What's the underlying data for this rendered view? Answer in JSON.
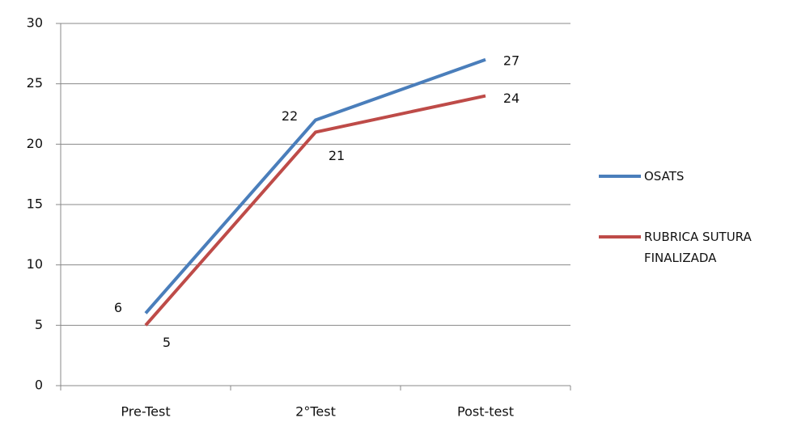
{
  "chart_data": {
    "type": "line",
    "categories": [
      "Pre-Test",
      "2°Test",
      "Post-test"
    ],
    "series": [
      {
        "name": "OSATS",
        "color": "#4a7ebb",
        "values": [
          6,
          22,
          27
        ]
      },
      {
        "name": "RUBRICA SUTURA FINALIZADA",
        "color": "#be4b48",
        "values": [
          5,
          21,
          24
        ]
      }
    ],
    "ylim": [
      0,
      30
    ],
    "yticks": [
      0,
      5,
      10,
      15,
      20,
      25,
      30
    ],
    "grid": true,
    "legend": "right"
  }
}
